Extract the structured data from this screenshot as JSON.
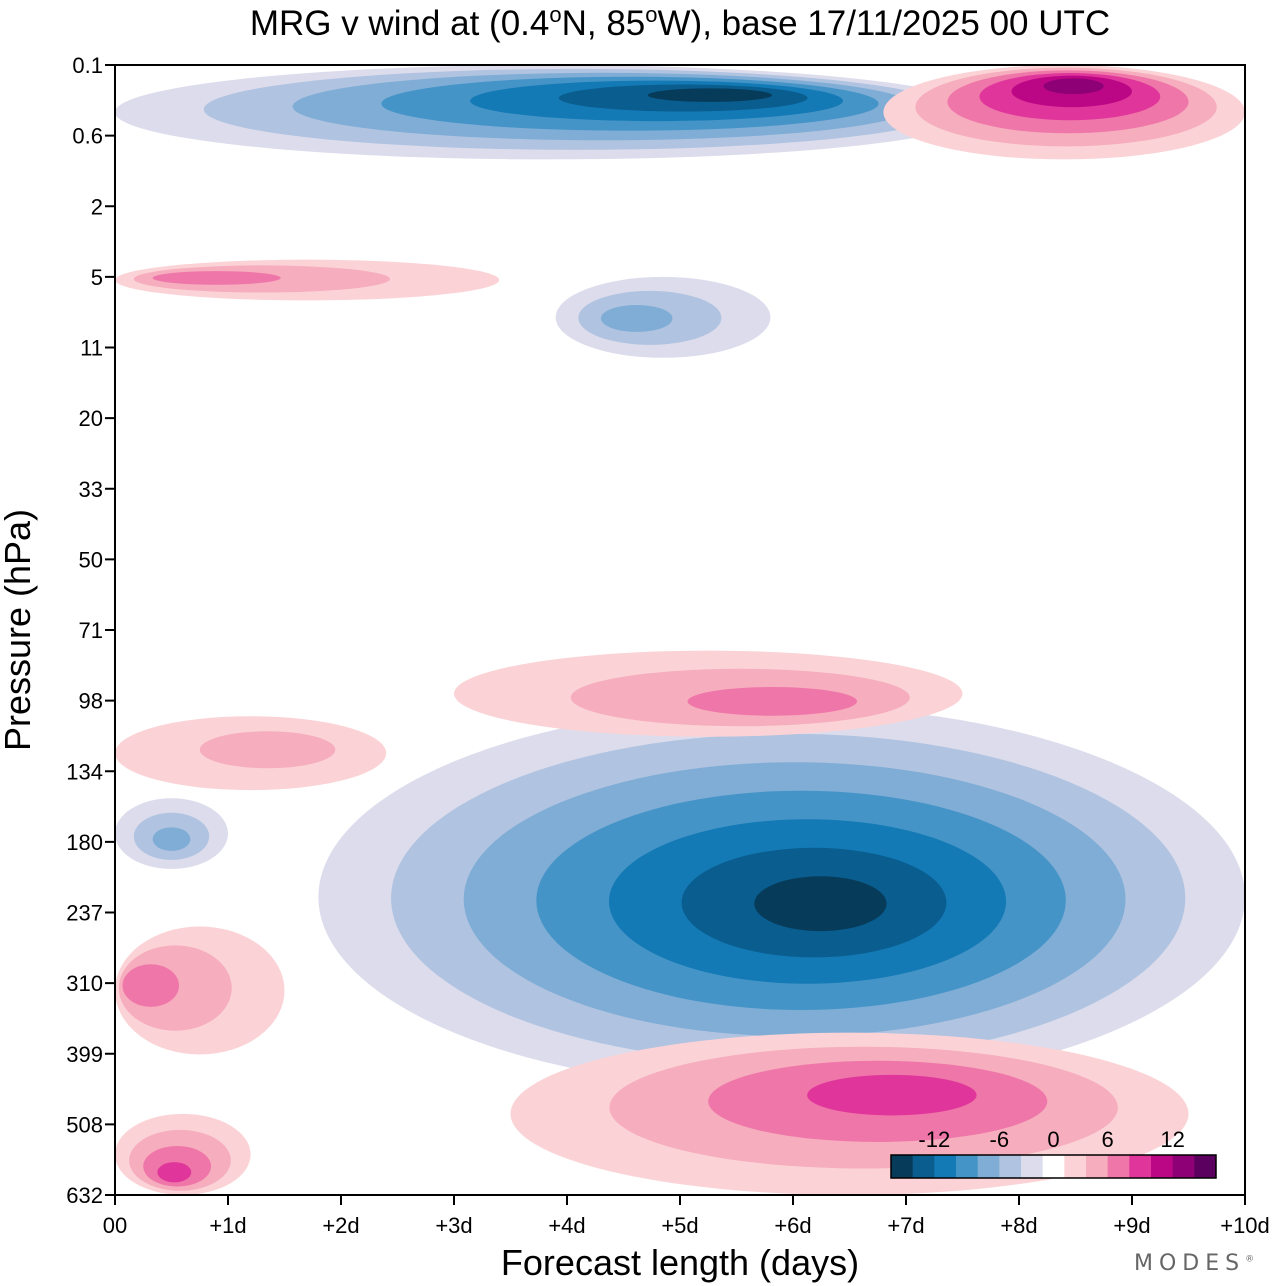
{
  "chart_data": {
    "type": "contourf",
    "title": "MRG v wind at (0.4°N, 85°W),  base 17/11/2025  00 UTC",
    "title_parts": {
      "prefix": "MRG v wind at (0.4",
      "deg1": "o",
      "mid": "N, 85",
      "deg2": "o",
      "suffix": "W),  base 17/11/2025  00 UTC"
    },
    "xlabel": "Forecast length (days)",
    "ylabel": "Pressure (hPa)",
    "x_range_days": [
      0,
      10
    ],
    "x_tick_values": [
      0,
      1,
      2,
      3,
      4,
      5,
      6,
      7,
      8,
      9,
      10
    ],
    "x_tick_labels": [
      "00",
      "+1d",
      "+2d",
      "+3d",
      "+4d",
      "+5d",
      "+6d",
      "+7d",
      "+8d",
      "+9d",
      "+10d"
    ],
    "y_axis_scale": "log-pressure",
    "y_range_hpa": [
      0.1,
      632
    ],
    "y_tick_labels": [
      "0.1",
      "0.6",
      "2",
      "5",
      "11",
      "20",
      "33",
      "50",
      "71",
      "98",
      "134",
      "180",
      "237",
      "310",
      "399",
      "508",
      "632"
    ],
    "contour_levels": [
      -14,
      -12,
      -10,
      -8,
      -6,
      -4,
      -2,
      2,
      4,
      6,
      8,
      10,
      12,
      14
    ],
    "colorbar": {
      "labels": [
        {
          "text": "-12",
          "value": -12
        },
        {
          "text": "-6",
          "value": -6
        },
        {
          "text": "0",
          "value": 0
        },
        {
          "text": "6",
          "value": 6
        },
        {
          "text": "12",
          "value": 12
        }
      ],
      "bins": [
        {
          "range": "< -14",
          "color": "#073b5a"
        },
        {
          "range": "-14 to -12",
          "color": "#0a5d8f"
        },
        {
          "range": "-12 to -10",
          "color": "#137ab5"
        },
        {
          "range": "-10 to -8",
          "color": "#4594c7"
        },
        {
          "range": "-8 to -6",
          "color": "#7fadd6"
        },
        {
          "range": "-6 to -4",
          "color": "#b0c3e0"
        },
        {
          "range": "-4 to -2",
          "color": "#dcdcec"
        },
        {
          "range": "-2 to 2",
          "color": "#ffffff"
        },
        {
          "range": "2 to 4",
          "color": "#fbd3d6"
        },
        {
          "range": "4 to 6",
          "color": "#f6adbd"
        },
        {
          "range": "6 to 8",
          "color": "#ef76a9"
        },
        {
          "range": "8 to 10",
          "color": "#e0359a"
        },
        {
          "range": "10 to 12",
          "color": "#bb0785"
        },
        {
          "range": "12 to 14",
          "color": "#8e0176"
        },
        {
          "range": "> 14",
          "color": "#5c0060"
        }
      ]
    },
    "features": [
      {
        "desc": "strong negative upper-tropospheric core",
        "sign": "negative",
        "x_days": [
          1.8,
          10.0
        ],
        "p_hpa": [
          100,
          450
        ],
        "peak_value": -15,
        "peak_x_days": 6.3,
        "peak_p_hpa": 230
      },
      {
        "desc": "weak negative near 160 hPa",
        "sign": "negative",
        "x_days": [
          0.0,
          1.0
        ],
        "p_hpa": [
          150,
          200
        ],
        "peak_value": -7,
        "peak_x_days": 0.5,
        "peak_p_hpa": 180
      },
      {
        "desc": "positive lower-tropospheric maximum",
        "sign": "positive",
        "x_days": [
          3.5,
          9.5
        ],
        "p_hpa": [
          370,
          632
        ],
        "peak_value": 9,
        "peak_x_days": 7.0,
        "peak_p_hpa": 450
      },
      {
        "desc": "positive near surface, early",
        "sign": "positive",
        "x_days": [
          0.0,
          1.2
        ],
        "p_hpa": [
          490,
          632
        ],
        "peak_value": 9,
        "peak_x_days": 0.5,
        "peak_p_hpa": 600
      },
      {
        "desc": "positive near 300 hPa, early",
        "sign": "positive",
        "x_days": [
          0.0,
          1.5
        ],
        "p_hpa": [
          250,
          400
        ],
        "peak_value": 7,
        "peak_x_days": 0.1,
        "peak_p_hpa": 310
      },
      {
        "desc": "positive near 120 hPa",
        "sign": "positive",
        "x_days": [
          0.0,
          2.4
        ],
        "p_hpa": [
          105,
          145
        ],
        "peak_value": 6,
        "peak_x_days": 1.5,
        "peak_p_hpa": 120
      },
      {
        "desc": "positive near 98 hPa",
        "sign": "positive",
        "x_days": [
          3.0,
          7.5
        ],
        "p_hpa": [
          78,
          115
        ],
        "peak_value": 8,
        "peak_x_days": 6.1,
        "peak_p_hpa": 100
      },
      {
        "desc": "strong negative mesosphere/upper stratosphere",
        "sign": "negative",
        "x_days": [
          0.0,
          7.7
        ],
        "p_hpa": [
          0.1,
          0.9
        ],
        "peak_value": -15,
        "peak_x_days": 5.5,
        "peak_p_hpa": 0.2
      },
      {
        "desc": "strong positive top right",
        "sign": "positive",
        "x_days": [
          6.8,
          10.0
        ],
        "p_hpa": [
          0.1,
          0.9
        ],
        "peak_value": 14,
        "peak_x_days": 8.5,
        "peak_p_hpa": 0.15
      },
      {
        "desc": "positive near 5 hPa, early",
        "sign": "positive",
        "x_days": [
          0.0,
          3.4
        ],
        "p_hpa": [
          4,
          6.5
        ],
        "peak_value": 8,
        "peak_x_days": 0.5,
        "peak_p_hpa": 5
      },
      {
        "desc": "negative near 8 hPa",
        "sign": "negative",
        "x_days": [
          3.9,
          5.8
        ],
        "p_hpa": [
          5,
          12
        ],
        "peak_value": -8,
        "peak_x_days": 4.5,
        "peak_p_hpa": 8
      }
    ]
  },
  "brand": {
    "text": "MODES",
    "mark": "®"
  }
}
